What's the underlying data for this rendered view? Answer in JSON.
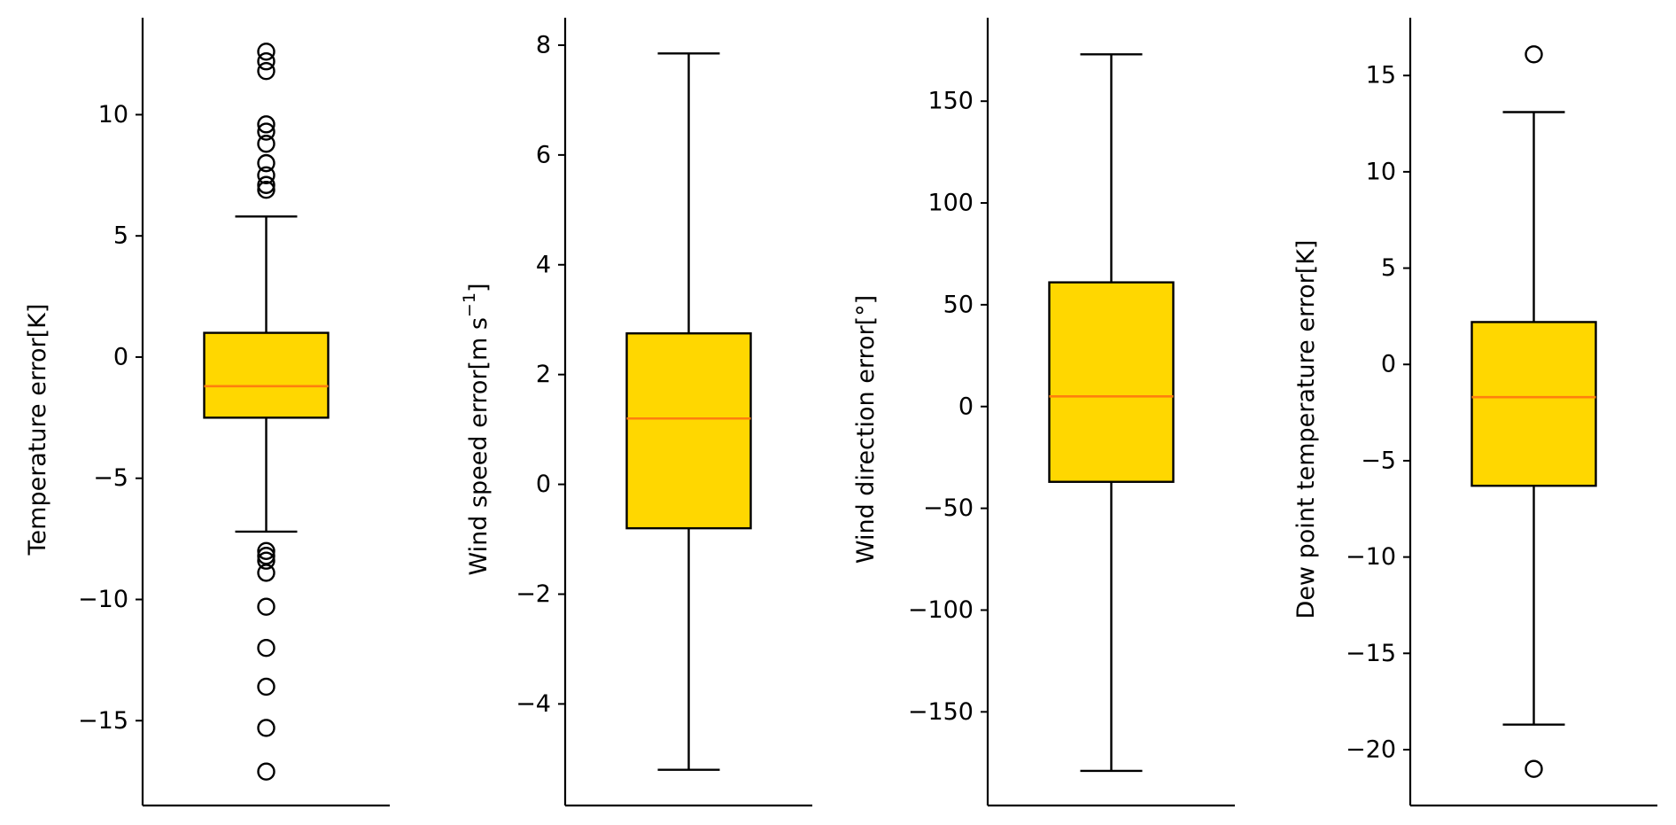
{
  "colors": {
    "box_fill": "#FFD700",
    "median": "#FF7F0E",
    "line": "#000000",
    "background": "#FFFFFF"
  },
  "chart_data": [
    {
      "type": "box",
      "ylabel": "Temperature  error[K]",
      "ylim": [
        -18.5,
        14
      ],
      "yticks": [
        -15,
        -10,
        -5,
        0,
        5,
        10
      ],
      "ytick_labels": [
        "−15",
        "−10",
        "−5",
        "0",
        "5",
        "10"
      ],
      "box": {
        "whisker_low": -7.2,
        "q1": -2.5,
        "median": -1.2,
        "q3": 1.0,
        "whisker_high": 5.8
      },
      "outliers": [
        12.6,
        12.2,
        11.8,
        9.6,
        9.3,
        8.8,
        8.0,
        7.5,
        7.1,
        6.9,
        -8.0,
        -8.2,
        -8.4,
        -8.9,
        -10.3,
        -12.0,
        -13.6,
        -15.3,
        -17.1
      ]
    },
    {
      "type": "box",
      "ylabel": "Wind speed error[m s",
      "ylabel_sup": "−1",
      "ylabel_end": "]",
      "ylim": [
        -5.85,
        8.5
      ],
      "yticks": [
        -4,
        -2,
        0,
        2,
        4,
        6,
        8
      ],
      "ytick_labels": [
        "−4",
        "−2",
        "0",
        "2",
        "4",
        "6",
        "8"
      ],
      "box": {
        "whisker_low": -5.2,
        "q1": -0.8,
        "median": 1.2,
        "q3": 2.75,
        "whisker_high": 7.85
      },
      "outliers": []
    },
    {
      "type": "box",
      "ylabel": "Wind direction error[°]",
      "ylim": [
        -196,
        191
      ],
      "yticks": [
        -150,
        -100,
        -50,
        0,
        50,
        100,
        150
      ],
      "ytick_labels": [
        "−150",
        "−100",
        "−50",
        "0",
        "50",
        "100",
        "150"
      ],
      "box": {
        "whisker_low": -179,
        "q1": -37,
        "median": 5,
        "q3": 61,
        "whisker_high": 173
      },
      "outliers": []
    },
    {
      "type": "box",
      "ylabel": "Dew point temperature error[K]",
      "ylim": [
        -22.9,
        18
      ],
      "yticks": [
        -20,
        -15,
        -10,
        -5,
        0,
        5,
        10,
        15
      ],
      "ytick_labels": [
        "−20",
        "−15",
        "−10",
        "−5",
        "0",
        "5",
        "10",
        "15"
      ],
      "box": {
        "whisker_low": -18.7,
        "q1": -6.3,
        "median": -1.7,
        "q3": 2.2,
        "whisker_high": 13.1
      },
      "outliers": [
        16.1,
        -21.0
      ]
    }
  ]
}
